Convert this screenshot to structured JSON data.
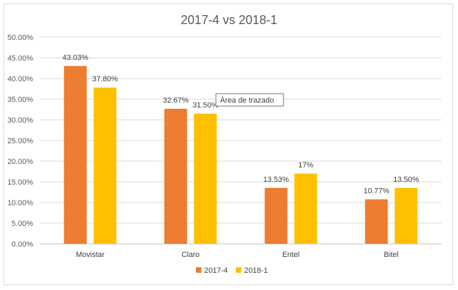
{
  "chart_data": {
    "type": "bar",
    "title": "2017-4 vs 2018-1",
    "categories": [
      "Movistar",
      "Claro",
      "Entel",
      "Bitel"
    ],
    "series": [
      {
        "name": "2017-4",
        "color": "#ED7D31",
        "values": [
          43.03,
          32.67,
          13.53,
          10.77
        ],
        "labels": [
          "43.03%",
          "32.67%",
          "13.53%",
          "10.77%"
        ]
      },
      {
        "name": "2018-1",
        "color": "#FFC000",
        "values": [
          37.8,
          31.5,
          17.0,
          13.5
        ],
        "labels": [
          "37.80%",
          "31.50%",
          "17%",
          "13.50%"
        ]
      }
    ],
    "yticks": [
      "0.00%",
      "5.00%",
      "10.00%",
      "15.00%",
      "20.00%",
      "25.00%",
      "30.00%",
      "35.00%",
      "40.00%",
      "45.00%",
      "50.00%"
    ],
    "ylim": [
      0,
      50
    ],
    "grid": true,
    "legend_position": "bottom",
    "tooltip": "Área de trazado"
  }
}
